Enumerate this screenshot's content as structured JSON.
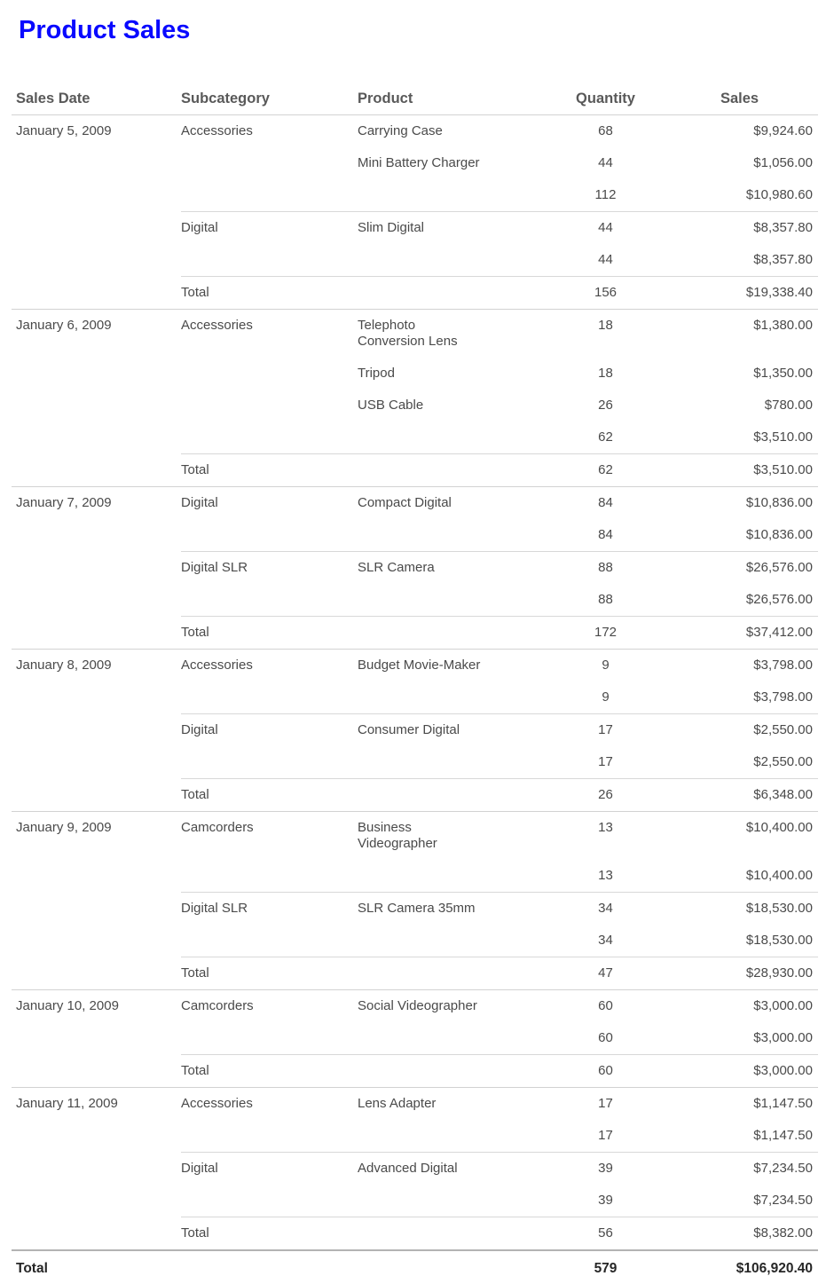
{
  "title": "Product Sales",
  "colors": {
    "title_blue": "#0909ff",
    "header_text": "#595959",
    "body_text": "#4a4a4a",
    "grand_total_text": "#262626",
    "rule_light": "#d2d2d2",
    "rule_grand": "#b3b3b3"
  },
  "columns": {
    "sales_date": "Sales Date",
    "subcategory": "Subcategory",
    "product": "Product",
    "quantity": "Quantity",
    "sales": "Sales"
  },
  "groups": [
    {
      "date": "January 5, 2009",
      "subgroups": [
        {
          "subcategory": "Accessories",
          "products": [
            {
              "name": [
                "Carrying Case"
              ],
              "qty": "68",
              "sales": "$9,924.60"
            },
            {
              "name": [
                "Mini Battery Charger"
              ],
              "qty": "44",
              "sales": "$1,056.00"
            }
          ],
          "subtotal": {
            "qty": "112",
            "sales": "$10,980.60"
          }
        },
        {
          "subcategory": "Digital",
          "products": [
            {
              "name": [
                "Slim Digital"
              ],
              "qty": "44",
              "sales": "$8,357.80"
            }
          ],
          "subtotal": {
            "qty": "44",
            "sales": "$8,357.80"
          }
        }
      ],
      "total": {
        "label": "Total",
        "qty": "156",
        "sales": "$19,338.40"
      }
    },
    {
      "date": "January 6, 2009",
      "subgroups": [
        {
          "subcategory": "Accessories",
          "products": [
            {
              "name": [
                "Telephoto",
                "Conversion Lens"
              ],
              "qty": "18",
              "sales": "$1,380.00"
            },
            {
              "name": [
                "Tripod"
              ],
              "qty": "18",
              "sales": "$1,350.00"
            },
            {
              "name": [
                "USB Cable"
              ],
              "qty": "26",
              "sales": "$780.00"
            }
          ],
          "subtotal": {
            "qty": "62",
            "sales": "$3,510.00"
          }
        }
      ],
      "total": {
        "label": "Total",
        "qty": "62",
        "sales": "$3,510.00"
      }
    },
    {
      "date": "January 7, 2009",
      "subgroups": [
        {
          "subcategory": "Digital",
          "products": [
            {
              "name": [
                "Compact Digital"
              ],
              "qty": "84",
              "sales": "$10,836.00"
            }
          ],
          "subtotal": {
            "qty": "84",
            "sales": "$10,836.00"
          }
        },
        {
          "subcategory": "Digital SLR",
          "products": [
            {
              "name": [
                "SLR Camera"
              ],
              "qty": "88",
              "sales": "$26,576.00"
            }
          ],
          "subtotal": {
            "qty": "88",
            "sales": "$26,576.00"
          }
        }
      ],
      "total": {
        "label": "Total",
        "qty": "172",
        "sales": "$37,412.00"
      }
    },
    {
      "date": "January 8, 2009",
      "subgroups": [
        {
          "subcategory": "Accessories",
          "products": [
            {
              "name": [
                "Budget Movie-Maker"
              ],
              "qty": "9",
              "sales": "$3,798.00"
            }
          ],
          "subtotal": {
            "qty": "9",
            "sales": "$3,798.00"
          }
        },
        {
          "subcategory": "Digital",
          "products": [
            {
              "name": [
                "Consumer Digital"
              ],
              "qty": "17",
              "sales": "$2,550.00"
            }
          ],
          "subtotal": {
            "qty": "17",
            "sales": "$2,550.00"
          }
        }
      ],
      "total": {
        "label": "Total",
        "qty": "26",
        "sales": "$6,348.00"
      }
    },
    {
      "date": "January 9, 2009",
      "subgroups": [
        {
          "subcategory": "Camcorders",
          "products": [
            {
              "name": [
                "Business",
                "Videographer"
              ],
              "qty": "13",
              "sales": "$10,400.00"
            }
          ],
          "subtotal": {
            "qty": "13",
            "sales": "$10,400.00"
          }
        },
        {
          "subcategory": "Digital SLR",
          "products": [
            {
              "name": [
                "SLR Camera 35mm"
              ],
              "qty": "34",
              "sales": "$18,530.00"
            }
          ],
          "subtotal": {
            "qty": "34",
            "sales": "$18,530.00"
          }
        }
      ],
      "total": {
        "label": "Total",
        "qty": "47",
        "sales": "$28,930.00"
      }
    },
    {
      "date": "January 10, 2009",
      "subgroups": [
        {
          "subcategory": "Camcorders",
          "products": [
            {
              "name": [
                "Social Videographer"
              ],
              "qty": "60",
              "sales": "$3,000.00"
            }
          ],
          "subtotal": {
            "qty": "60",
            "sales": "$3,000.00"
          }
        }
      ],
      "total": {
        "label": "Total",
        "qty": "60",
        "sales": "$3,000.00"
      }
    },
    {
      "date": "January 11, 2009",
      "subgroups": [
        {
          "subcategory": "Accessories",
          "products": [
            {
              "name": [
                "Lens Adapter"
              ],
              "qty": "17",
              "sales": "$1,147.50"
            }
          ],
          "subtotal": {
            "qty": "17",
            "sales": "$1,147.50"
          }
        },
        {
          "subcategory": "Digital",
          "products": [
            {
              "name": [
                "Advanced Digital"
              ],
              "qty": "39",
              "sales": "$7,234.50"
            }
          ],
          "subtotal": {
            "qty": "39",
            "sales": "$7,234.50"
          }
        }
      ],
      "total": {
        "label": "Total",
        "qty": "56",
        "sales": "$8,382.00"
      }
    }
  ],
  "grand_total": {
    "label": "Total",
    "qty": "579",
    "sales": "$106,920.40"
  }
}
